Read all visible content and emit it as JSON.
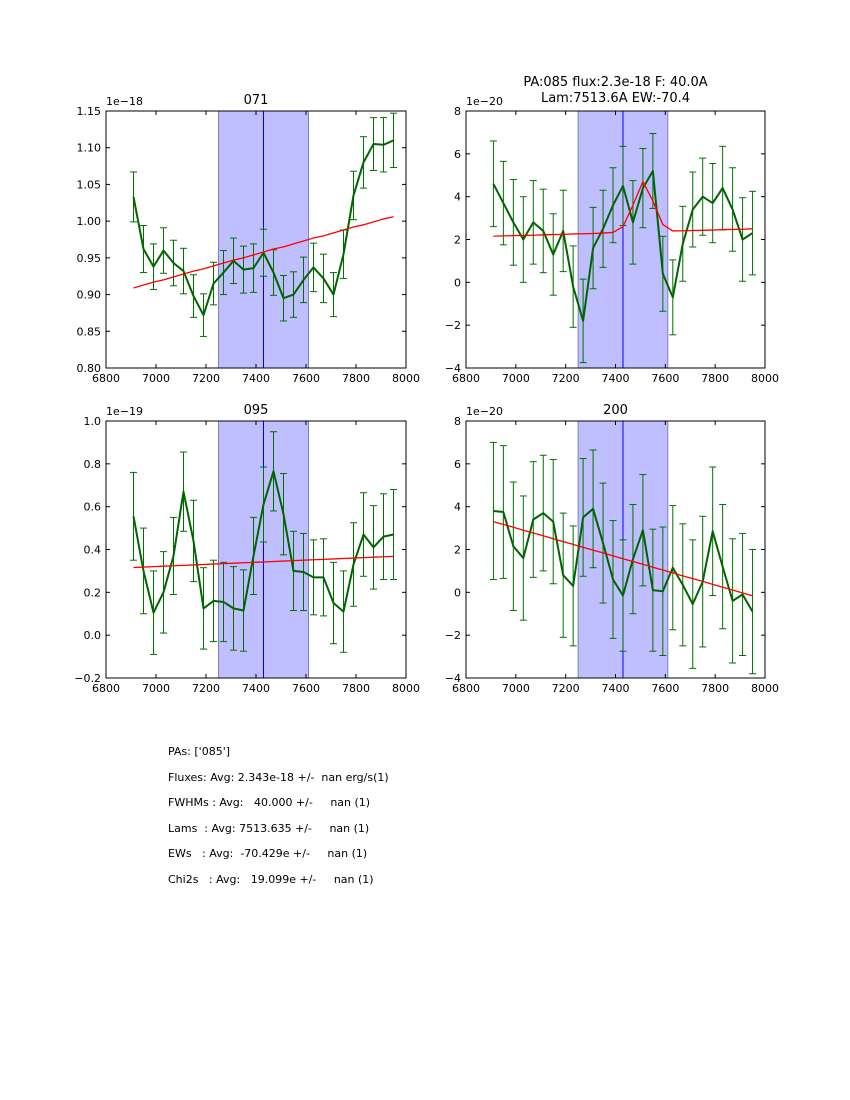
{
  "chart_data": [
    {
      "type": "line",
      "title": "071",
      "offset_label": "1e−18",
      "xlabel": "",
      "ylabel": "",
      "xlim": [
        6800,
        8000
      ],
      "ylim": [
        0.8,
        1.15
      ],
      "xticks": [
        6800,
        7000,
        7200,
        7400,
        7600,
        7800,
        8000
      ],
      "yticks": [
        0.8,
        0.85,
        0.9,
        0.95,
        1.0,
        1.05,
        1.1,
        1.15
      ],
      "ytick_labels": [
        "0.80",
        "0.85",
        "0.90",
        "0.95",
        "1.00",
        "1.05",
        "1.10",
        "1.15"
      ],
      "band": [
        7250,
        7610
      ],
      "vline": 7430,
      "x": [
        6910,
        6950,
        6990,
        7030,
        7070,
        7110,
        7150,
        7190,
        7230,
        7270,
        7310,
        7350,
        7390,
        7430,
        7470,
        7510,
        7550,
        7590,
        7630,
        7670,
        7710,
        7750,
        7790,
        7830,
        7870,
        7910,
        7950
      ],
      "series": [
        {
          "name": "flux",
          "color": "#006400",
          "values": [
            1.033,
            0.962,
            0.938,
            0.96,
            0.943,
            0.932,
            0.898,
            0.872,
            0.915,
            0.93,
            0.946,
            0.934,
            0.936,
            0.957,
            0.93,
            0.895,
            0.9,
            0.92,
            0.937,
            0.922,
            0.9,
            0.955,
            1.035,
            1.08,
            1.105,
            1.104,
            1.11
          ],
          "errors": [
            0.034,
            0.032,
            0.031,
            0.031,
            0.031,
            0.031,
            0.029,
            0.029,
            0.029,
            0.03,
            0.031,
            0.032,
            0.033,
            0.032,
            0.031,
            0.031,
            0.031,
            0.031,
            0.033,
            0.033,
            0.03,
            0.033,
            0.033,
            0.035,
            0.036,
            0.037,
            0.037
          ]
        },
        {
          "name": "fit",
          "color": "#ff0000",
          "values": [
            0.909,
            0.913,
            0.917,
            0.92,
            0.924,
            0.928,
            0.932,
            0.935,
            0.939,
            0.943,
            0.947,
            0.95,
            0.954,
            0.958,
            0.962,
            0.965,
            0.969,
            0.973,
            0.977,
            0.98,
            0.984,
            0.988,
            0.992,
            0.995,
            0.999,
            1.003,
            1.006
          ]
        }
      ]
    },
    {
      "type": "line",
      "title": "PA:085 flux:2.3e-18 F: 40.0A\nLam:7513.6A EW:-70.4",
      "title_lines": [
        "PA:085 flux:2.3e-18 F: 40.0A",
        "Lam:7513.6A EW:-70.4"
      ],
      "offset_label": "1e−20",
      "xlabel": "",
      "ylabel": "",
      "xlim": [
        6800,
        8000
      ],
      "ylim": [
        -4,
        8
      ],
      "xticks": [
        6800,
        7000,
        7200,
        7400,
        7600,
        7800,
        8000
      ],
      "yticks": [
        -4,
        -2,
        0,
        2,
        4,
        6,
        8
      ],
      "ytick_labels": [
        "−4",
        "−2",
        "0",
        "2",
        "4",
        "6",
        "8"
      ],
      "band": [
        7250,
        7610
      ],
      "vline": 7430,
      "x": [
        6910,
        6950,
        6990,
        7030,
        7070,
        7110,
        7150,
        7190,
        7230,
        7270,
        7310,
        7350,
        7390,
        7430,
        7470,
        7510,
        7550,
        7590,
        7630,
        7670,
        7710,
        7750,
        7790,
        7830,
        7870,
        7910,
        7950
      ],
      "series": [
        {
          "name": "flux",
          "color": "#006400",
          "values": [
            4.6,
            3.7,
            2.8,
            2.0,
            2.8,
            2.4,
            1.3,
            2.4,
            -0.2,
            -1.8,
            1.6,
            2.5,
            3.6,
            4.5,
            2.8,
            4.4,
            5.2,
            0.4,
            -0.7,
            1.8,
            3.4,
            4.0,
            3.7,
            4.4,
            3.4,
            2.0,
            2.3
          ],
          "errors": [
            2.0,
            1.95,
            2.0,
            2.0,
            1.95,
            1.95,
            1.9,
            1.9,
            1.9,
            1.95,
            1.9,
            1.8,
            1.75,
            1.85,
            1.95,
            1.85,
            1.75,
            1.75,
            1.75,
            1.75,
            1.75,
            1.8,
            1.85,
            1.95,
            1.95,
            1.95,
            1.95
          ]
        },
        {
          "name": "fit",
          "color": "#ff0000",
          "values": [
            2.15,
            2.17,
            2.18,
            2.19,
            2.2,
            2.22,
            2.23,
            2.24,
            2.26,
            2.27,
            2.28,
            2.3,
            2.33,
            2.6,
            3.6,
            4.7,
            3.8,
            2.7,
            2.4,
            2.41,
            2.42,
            2.43,
            2.44,
            2.46,
            2.47,
            2.48,
            2.5
          ]
        }
      ]
    },
    {
      "type": "line",
      "title": "095",
      "offset_label": "1e−19",
      "xlabel": "",
      "ylabel": "",
      "xlim": [
        6800,
        8000
      ],
      "ylim": [
        -0.2,
        1.0
      ],
      "xticks": [
        6800,
        7000,
        7200,
        7400,
        7600,
        7800,
        8000
      ],
      "yticks": [
        -0.2,
        0.0,
        0.2,
        0.4,
        0.6,
        0.8,
        1.0
      ],
      "ytick_labels": [
        "−0.2",
        "0.0",
        "0.2",
        "0.4",
        "0.6",
        "0.8",
        "1.0"
      ],
      "band": [
        7250,
        7610
      ],
      "vline": 7430,
      "x": [
        6910,
        6950,
        6990,
        7030,
        7070,
        7110,
        7150,
        7190,
        7230,
        7270,
        7310,
        7350,
        7390,
        7430,
        7470,
        7510,
        7550,
        7590,
        7630,
        7670,
        7710,
        7750,
        7790,
        7830,
        7870,
        7910,
        7950
      ],
      "series": [
        {
          "name": "flux",
          "color": "#006400",
          "values": [
            0.555,
            0.3,
            0.105,
            0.2,
            0.37,
            0.67,
            0.44,
            0.125,
            0.16,
            0.155,
            0.125,
            0.115,
            0.37,
            0.61,
            0.765,
            0.565,
            0.3,
            0.295,
            0.27,
            0.27,
            0.15,
            0.11,
            0.33,
            0.47,
            0.41,
            0.46,
            0.47
          ],
          "errors": [
            0.205,
            0.2,
            0.195,
            0.19,
            0.18,
            0.185,
            0.19,
            0.19,
            0.19,
            0.185,
            0.195,
            0.19,
            0.18,
            0.175,
            0.185,
            0.19,
            0.185,
            0.18,
            0.175,
            0.18,
            0.19,
            0.19,
            0.195,
            0.195,
            0.195,
            0.2,
            0.21
          ]
        },
        {
          "name": "fit",
          "color": "#ff0000",
          "values": [
            0.316,
            0.318,
            0.32,
            0.322,
            0.324,
            0.326,
            0.328,
            0.33,
            0.332,
            0.334,
            0.336,
            0.338,
            0.34,
            0.342,
            0.344,
            0.346,
            0.348,
            0.35,
            0.352,
            0.354,
            0.356,
            0.358,
            0.36,
            0.362,
            0.364,
            0.366,
            0.368
          ]
        }
      ]
    },
    {
      "type": "line",
      "title": "200",
      "offset_label": "1e−20",
      "xlabel": "",
      "ylabel": "",
      "xlim": [
        6800,
        8000
      ],
      "ylim": [
        -4,
        8
      ],
      "xticks": [
        6800,
        7000,
        7200,
        7400,
        7600,
        7800,
        8000
      ],
      "yticks": [
        -4,
        -2,
        0,
        2,
        4,
        6,
        8
      ],
      "ytick_labels": [
        "−4",
        "−2",
        "0",
        "2",
        "4",
        "6",
        "8"
      ],
      "band": [
        7250,
        7610
      ],
      "vline": 7430,
      "x": [
        6910,
        6950,
        6990,
        7030,
        7070,
        7110,
        7150,
        7190,
        7230,
        7270,
        7310,
        7350,
        7390,
        7430,
        7470,
        7510,
        7550,
        7590,
        7630,
        7670,
        7710,
        7750,
        7790,
        7830,
        7870,
        7910,
        7950
      ],
      "series": [
        {
          "name": "flux",
          "color": "#006400",
          "values": [
            3.8,
            3.75,
            2.15,
            1.6,
            3.4,
            3.7,
            3.3,
            0.8,
            0.3,
            3.5,
            3.9,
            2.3,
            0.6,
            -0.15,
            1.55,
            2.9,
            0.1,
            0.05,
            1.15,
            0.35,
            -0.55,
            0.5,
            2.85,
            1.2,
            -0.4,
            -0.1,
            -0.9
          ],
          "errors": [
            3.2,
            3.1,
            3.0,
            2.9,
            2.7,
            2.7,
            2.9,
            2.9,
            2.8,
            2.75,
            2.75,
            2.8,
            2.75,
            2.6,
            2.55,
            2.6,
            2.85,
            3.0,
            2.9,
            2.85,
            3.0,
            3.05,
            3.0,
            2.9,
            2.9,
            2.85,
            2.9
          ]
        },
        {
          "name": "fit",
          "color": "#ff0000",
          "values": [
            3.3,
            3.17,
            3.04,
            2.9,
            2.77,
            2.64,
            2.5,
            2.37,
            2.24,
            2.1,
            1.97,
            1.84,
            1.7,
            1.57,
            1.44,
            1.31,
            1.17,
            1.04,
            0.91,
            0.77,
            0.64,
            0.51,
            0.37,
            0.24,
            0.11,
            -0.03,
            -0.16
          ]
        }
      ]
    }
  ],
  "summary": {
    "lines": [
      "PAs: ['085']",
      "Fluxes: Avg: 2.343e-18 +/-  nan erg/s(1)",
      "FWHMs : Avg:   40.000 +/-     nan (1)",
      "Lams  : Avg: 7513.635 +/-     nan (1)",
      "EWs   : Avg:  -70.429e +/-     nan (1)",
      "Chi2s   : Avg:   19.099e +/-     nan (1)"
    ]
  },
  "colors": {
    "band_fill": "#bfbfff",
    "band_edge": "#8080b8",
    "vline": "#0000ff",
    "flux": "#006400",
    "errorbar": "#007000",
    "fit": "#ff0000"
  }
}
